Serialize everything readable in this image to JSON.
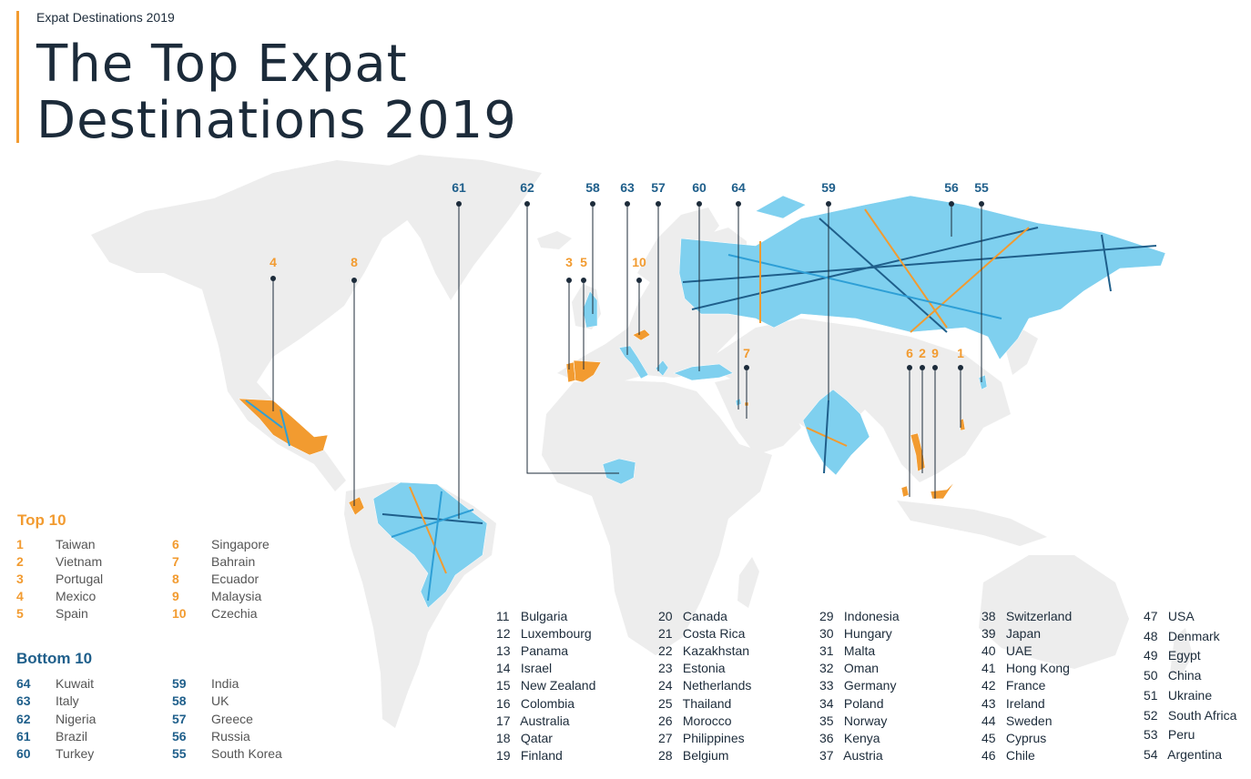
{
  "header": {
    "eyebrow": "Expat Destinations 2019",
    "title_line1": "The Top Expat",
    "title_line2": "Destinations 2019"
  },
  "colors": {
    "top": "#f29b30",
    "bottom": "#1f5f8b",
    "bottom_fill": "#7fd0ef",
    "land": "#ededed",
    "text": "#1c2b3a"
  },
  "map_markers": {
    "top": [
      "4",
      "8",
      "3",
      "5",
      "10",
      "7",
      "6",
      "2",
      "9",
      "1"
    ],
    "bottom": [
      "61",
      "62",
      "58",
      "63",
      "57",
      "60",
      "64",
      "59",
      "56",
      "55"
    ]
  },
  "legend": {
    "top_heading": "Top 10",
    "bottom_heading": "Bottom 10",
    "top": [
      {
        "rank": "1",
        "name": "Taiwan"
      },
      {
        "rank": "2",
        "name": "Vietnam"
      },
      {
        "rank": "3",
        "name": "Portugal"
      },
      {
        "rank": "4",
        "name": "Mexico"
      },
      {
        "rank": "5",
        "name": "Spain"
      },
      {
        "rank": "6",
        "name": "Singapore"
      },
      {
        "rank": "7",
        "name": "Bahrain"
      },
      {
        "rank": "8",
        "name": "Ecuador"
      },
      {
        "rank": "9",
        "name": "Malaysia"
      },
      {
        "rank": "10",
        "name": "Czechia"
      }
    ],
    "bottom": [
      {
        "rank": "64",
        "name": "Kuwait"
      },
      {
        "rank": "63",
        "name": "Italy"
      },
      {
        "rank": "62",
        "name": "Nigeria"
      },
      {
        "rank": "61",
        "name": "Brazil"
      },
      {
        "rank": "60",
        "name": "Turkey"
      },
      {
        "rank": "59",
        "name": "India"
      },
      {
        "rank": "58",
        "name": "UK"
      },
      {
        "rank": "57",
        "name": "Greece"
      },
      {
        "rank": "56",
        "name": "Russia"
      },
      {
        "rank": "55",
        "name": "South Korea"
      }
    ]
  },
  "middle_ranks": [
    {
      "rank": "11",
      "name": "Bulgaria"
    },
    {
      "rank": "12",
      "name": "Luxembourg"
    },
    {
      "rank": "13",
      "name": "Panama"
    },
    {
      "rank": "14",
      "name": "Israel"
    },
    {
      "rank": "15",
      "name": "New Zealand"
    },
    {
      "rank": "16",
      "name": "Colombia"
    },
    {
      "rank": "17",
      "name": "Australia"
    },
    {
      "rank": "18",
      "name": "Qatar"
    },
    {
      "rank": "19",
      "name": "Finland"
    },
    {
      "rank": "20",
      "name": "Canada"
    },
    {
      "rank": "21",
      "name": "Costa Rica"
    },
    {
      "rank": "22",
      "name": "Kazakhstan"
    },
    {
      "rank": "23",
      "name": "Estonia"
    },
    {
      "rank": "24",
      "name": "Netherlands"
    },
    {
      "rank": "25",
      "name": "Thailand"
    },
    {
      "rank": "26",
      "name": "Morocco"
    },
    {
      "rank": "27",
      "name": "Philippines"
    },
    {
      "rank": "28",
      "name": "Belgium"
    },
    {
      "rank": "29",
      "name": "Indonesia"
    },
    {
      "rank": "30",
      "name": "Hungary"
    },
    {
      "rank": "31",
      "name": "Malta"
    },
    {
      "rank": "32",
      "name": "Oman"
    },
    {
      "rank": "33",
      "name": "Germany"
    },
    {
      "rank": "34",
      "name": "Poland"
    },
    {
      "rank": "35",
      "name": "Norway"
    },
    {
      "rank": "36",
      "name": "Kenya"
    },
    {
      "rank": "37",
      "name": "Austria"
    },
    {
      "rank": "38",
      "name": "Switzerland"
    },
    {
      "rank": "39",
      "name": "Japan"
    },
    {
      "rank": "40",
      "name": "UAE"
    },
    {
      "rank": "41",
      "name": "Hong Kong"
    },
    {
      "rank": "42",
      "name": "France"
    },
    {
      "rank": "43",
      "name": "Ireland"
    },
    {
      "rank": "44",
      "name": "Sweden"
    },
    {
      "rank": "45",
      "name": "Cyprus"
    },
    {
      "rank": "46",
      "name": "Chile"
    },
    {
      "rank": "47",
      "name": "USA"
    },
    {
      "rank": "48",
      "name": "Denmark"
    },
    {
      "rank": "49",
      "name": "Egypt"
    },
    {
      "rank": "50",
      "name": "China"
    },
    {
      "rank": "51",
      "name": "Ukraine"
    },
    {
      "rank": "52",
      "name": "South Africa"
    },
    {
      "rank": "53",
      "name": "Peru"
    },
    {
      "rank": "54",
      "name": "Argentina"
    }
  ]
}
